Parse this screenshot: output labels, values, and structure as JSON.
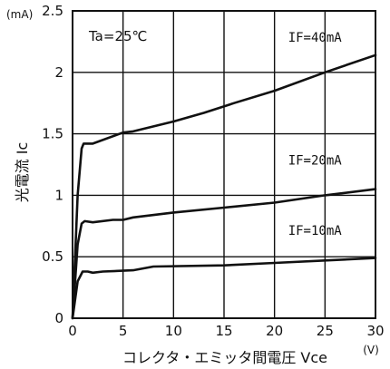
{
  "chart_data": {
    "type": "line",
    "title": "",
    "xlabel": "コレクタ・エミッタ間電圧 Vce",
    "ylabel": "光電流 Ic",
    "x_unit": "(V)",
    "y_unit": "(mA)",
    "xlim": [
      0,
      30
    ],
    "ylim": [
      0,
      2.5
    ],
    "x_ticks": [
      "0",
      "5",
      "10",
      "15",
      "20",
      "25",
      "30"
    ],
    "y_ticks": [
      "0",
      "0.5",
      "1",
      "1.5",
      "2",
      "2.5"
    ],
    "grid": true,
    "annotation": "Ta=25℃",
    "series": [
      {
        "name": "IF=40mA",
        "x": [
          0,
          0.5,
          0.9,
          1.1,
          2,
          5,
          6,
          10,
          13,
          16,
          20,
          25,
          30
        ],
        "y": [
          0,
          1.0,
          1.38,
          1.42,
          1.42,
          1.51,
          1.52,
          1.6,
          1.67,
          1.75,
          1.85,
          2.0,
          2.14
        ]
      },
      {
        "name": "IF=20mA",
        "x": [
          0,
          0.5,
          0.9,
          1.2,
          2,
          4,
          5,
          6,
          10,
          15,
          20,
          25,
          30
        ],
        "y": [
          0,
          0.6,
          0.77,
          0.79,
          0.78,
          0.8,
          0.8,
          0.82,
          0.86,
          0.9,
          0.94,
          1.0,
          1.05
        ]
      },
      {
        "name": "IF=10mA",
        "x": [
          0,
          0.5,
          1,
          1.5,
          2,
          3,
          6,
          8,
          15,
          20,
          25,
          30
        ],
        "y": [
          0,
          0.3,
          0.38,
          0.38,
          0.37,
          0.38,
          0.39,
          0.42,
          0.43,
          0.45,
          0.47,
          0.49
        ]
      }
    ],
    "series_label_x": [
      24,
      24,
      24
    ],
    "series_label_y": [
      2.25,
      1.25,
      0.68
    ]
  }
}
